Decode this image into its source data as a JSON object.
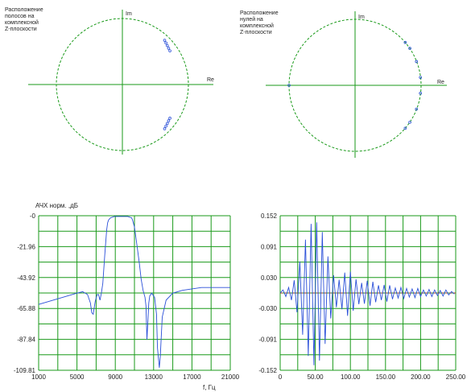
{
  "chart_data": [
    {
      "type": "scatter",
      "title": "Расположение полосов на комплексной Z-плоскости",
      "title_lines": [
        "Расположение",
        "полосов на",
        "комплексной",
        "Z-плоскости"
      ],
      "axis_labels": {
        "im": "Im",
        "re": "Re"
      },
      "unit_circle": true,
      "points": [
        {
          "re": 0.64,
          "im": 0.67
        },
        {
          "re": 0.66,
          "im": 0.63
        },
        {
          "re": 0.68,
          "im": 0.59
        },
        {
          "re": 0.7,
          "im": 0.55
        },
        {
          "re": 0.72,
          "im": 0.51
        },
        {
          "re": 0.64,
          "im": -0.67
        },
        {
          "re": 0.66,
          "im": -0.63
        },
        {
          "re": 0.68,
          "im": -0.59
        },
        {
          "re": 0.7,
          "im": -0.55
        },
        {
          "re": 0.72,
          "im": -0.51
        }
      ],
      "colors": {
        "circle": "#1a9a1a",
        "axis": "#1a9a1a",
        "marker": "#2a4fd8"
      }
    },
    {
      "type": "scatter",
      "title": "Расположение нулей на комплексной Z-плоскости",
      "title_lines": [
        "Расположение",
        "нулей на",
        "комплексной",
        "Z-плоскости"
      ],
      "axis_labels": {
        "im": "Im",
        "re": "Re"
      },
      "unit_circle": true,
      "points": [
        {
          "re": 0.76,
          "im": 0.65
        },
        {
          "re": 0.83,
          "im": 0.56
        },
        {
          "re": 0.93,
          "im": 0.36
        },
        {
          "re": 0.99,
          "im": 0.12
        },
        {
          "re": 0.76,
          "im": -0.65
        },
        {
          "re": 0.83,
          "im": -0.56
        },
        {
          "re": 0.93,
          "im": -0.36
        },
        {
          "re": 0.99,
          "im": -0.12
        },
        {
          "re": -1.0,
          "im": 0.0
        }
      ],
      "colors": {
        "circle": "#1a9a1a",
        "axis": "#1a9a1a",
        "marker": "#2a4fd8"
      }
    },
    {
      "type": "line",
      "title": "АЧХ норм. ,дБ",
      "xlabel": "f, Гц",
      "ylabel": "АЧХ норм. ,дБ",
      "xlim": [
        1000,
        21000
      ],
      "ylim": [
        -109.81,
        0
      ],
      "xticks": [
        "1000",
        "5000",
        "9000",
        "13000",
        "17000",
        "21000"
      ],
      "yticks": [
        "-0",
        "-21.96",
        "-43.92",
        "-65.88",
        "-87.84",
        "-109.81"
      ],
      "grid": true,
      "series": [
        {
          "x": [
            1000,
            2000,
            3000,
            4000,
            5000,
            5600,
            6100,
            6400,
            6550,
            6700,
            6900,
            7100,
            7250,
            7400,
            7550,
            7700,
            7900,
            8100,
            8200,
            8300,
            8500,
            8900,
            9300,
            9600,
            9900,
            10300,
            10700,
            10800,
            11000,
            11200,
            11500,
            11700,
            11900,
            12100,
            12200,
            12300,
            12400,
            12500,
            12600,
            12800,
            13100,
            13300,
            13400,
            13600,
            13700,
            13900,
            14300,
            15000,
            16000,
            17000,
            18000,
            19000,
            20000,
            21000
          ],
          "y": [
            -63,
            -61,
            -59,
            -57,
            -55,
            -54,
            -56,
            -62,
            -69,
            -70,
            -61,
            -56,
            -56,
            -60,
            -55,
            -48,
            -28,
            -10,
            -5,
            -3,
            -1.5,
            -0.5,
            -0.5,
            -0.5,
            -0.5,
            -0.5,
            -1.5,
            -3,
            -8,
            -18,
            -33,
            -45,
            -53,
            -58,
            -64,
            -88,
            -75,
            -62,
            -57,
            -55,
            -58,
            -70,
            -94,
            -108,
            -100,
            -72,
            -60,
            -55,
            -53,
            -52,
            -51,
            -51,
            -51,
            -51
          ]
        }
      ],
      "colors": {
        "grid": "#1a9a1a",
        "line": "#2a4fd8"
      }
    },
    {
      "type": "line",
      "xlim": [
        0,
        250
      ],
      "ylim": [
        -0.152,
        0.152
      ],
      "xticks": [
        "0",
        "50.00",
        "100.00",
        "150.00",
        "200.00",
        "250.00"
      ],
      "yticks": [
        "0.152",
        "0.091",
        "0.030",
        "-0.030",
        "-0.091",
        "-0.152"
      ],
      "grid": true,
      "series": [
        {
          "x": [
            0,
            4,
            8,
            12,
            16,
            20,
            24,
            28,
            32,
            36,
            40,
            44,
            48,
            52,
            56,
            60,
            64,
            68,
            72,
            76,
            80,
            84,
            88,
            92,
            96,
            100,
            104,
            108,
            112,
            116,
            120,
            124,
            128,
            132,
            136,
            140,
            144,
            148,
            152,
            156,
            160,
            164,
            168,
            172,
            176,
            180,
            184,
            188,
            192,
            196,
            200,
            204,
            208,
            212,
            216,
            220,
            224,
            228,
            232,
            236,
            240,
            244,
            248
          ],
          "y": [
            0.0,
            0.006,
            -0.007,
            0.011,
            -0.014,
            0.025,
            -0.038,
            0.062,
            -0.082,
            0.105,
            -0.124,
            0.136,
            -0.142,
            0.139,
            -0.133,
            0.12,
            -0.1,
            0.072,
            -0.05,
            0.035,
            -0.028,
            0.026,
            -0.032,
            0.04,
            -0.045,
            0.042,
            -0.035,
            0.027,
            -0.022,
            0.02,
            -0.021,
            0.024,
            -0.025,
            0.022,
            -0.018,
            0.015,
            -0.014,
            0.016,
            -0.017,
            0.015,
            -0.012,
            0.01,
            -0.01,
            0.011,
            -0.011,
            0.009,
            -0.008,
            0.008,
            -0.009,
            0.009,
            -0.007,
            0.006,
            -0.006,
            0.007,
            -0.007,
            0.006,
            -0.005,
            0.005,
            -0.006,
            0.006,
            -0.004,
            0.003,
            -0.002
          ]
        }
      ],
      "baseline": 0.0,
      "colors": {
        "grid": "#1a9a1a",
        "line": "#2a4fd8",
        "baseline": "#d02020"
      }
    }
  ]
}
